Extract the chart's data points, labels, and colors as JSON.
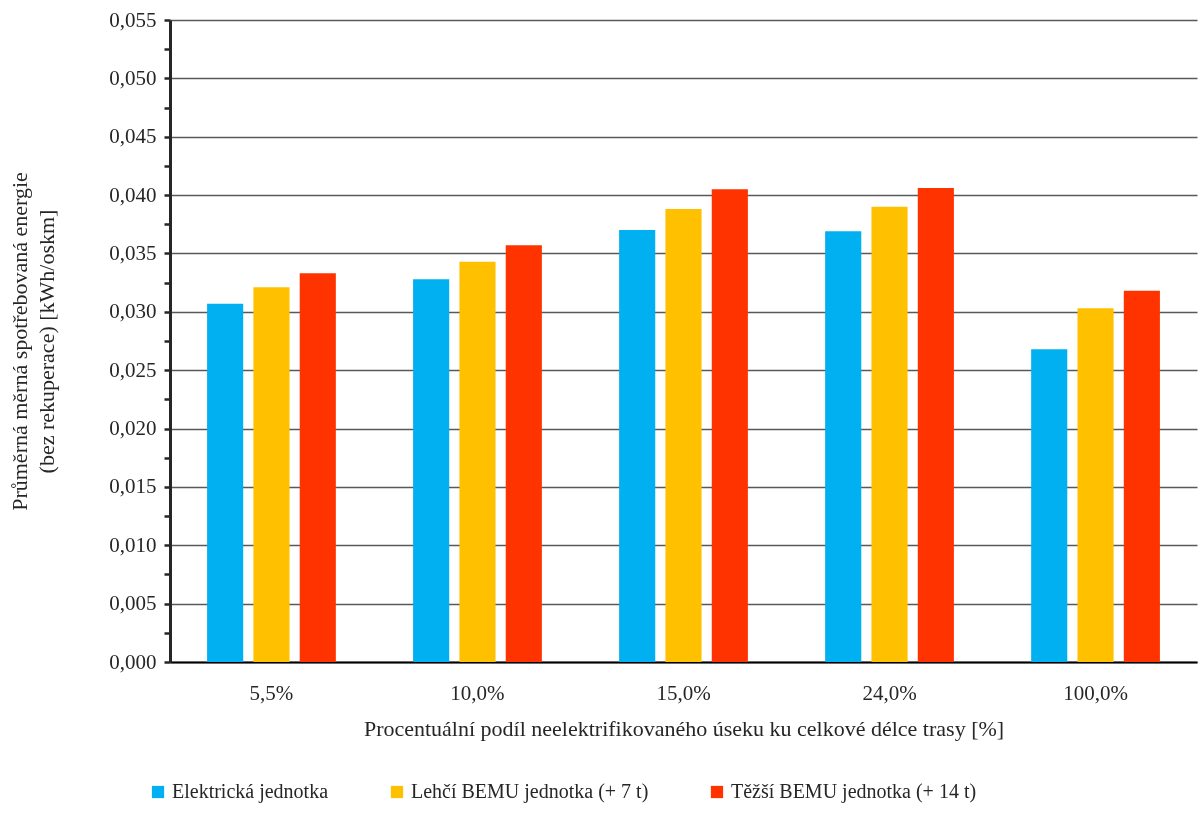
{
  "chart_data": {
    "type": "bar",
    "xlabel": "Procentuální podíl neelektrifikovaného úseku ku celkové délce trasy [%]",
    "ylabel": "Průměrná měrná spotřebovaná energie (bez rekuperace) [kWh/oskm]",
    "categories": [
      "5,5%",
      "10,0%",
      "15,0%",
      "24,0%",
      "100,0%"
    ],
    "series": [
      {
        "name": "Elektrická jednotka",
        "color": "#00b0f0",
        "values": [
          0.0307,
          0.0328,
          0.037,
          0.0369,
          0.0268
        ]
      },
      {
        "name": "Lehčí BEMU jednotka (+ 7 t)",
        "color": "#ffc000",
        "values": [
          0.0321,
          0.0343,
          0.0388,
          0.039,
          0.0303
        ]
      },
      {
        "name": "Těžší BEMU jednotka (+ 14 t)",
        "color": "#ff3300",
        "values": [
          0.0333,
          0.0357,
          0.0405,
          0.0406,
          0.0318
        ]
      }
    ],
    "ylim": [
      0,
      0.055
    ],
    "yticks": [
      {
        "value": 0,
        "label": "0,000"
      },
      {
        "value": 0.0025,
        "label": null
      },
      {
        "value": 0.005,
        "label": "0,005"
      },
      {
        "value": 0.0075,
        "label": null
      },
      {
        "value": 0.01,
        "label": "0,010"
      },
      {
        "value": 0.0125,
        "label": null
      },
      {
        "value": 0.015,
        "label": "0,015"
      },
      {
        "value": 0.0175,
        "label": null
      },
      {
        "value": 0.02,
        "label": "0,020"
      },
      {
        "value": 0.0225,
        "label": null
      },
      {
        "value": 0.025,
        "label": "0,025"
      },
      {
        "value": 0.0275,
        "label": null
      },
      {
        "value": 0.03,
        "label": "0,030"
      },
      {
        "value": 0.0325,
        "label": null
      },
      {
        "value": 0.035,
        "label": "0,035"
      },
      {
        "value": 0.0375,
        "label": null
      },
      {
        "value": 0.04,
        "label": "0,040"
      },
      {
        "value": 0.0425,
        "label": null
      },
      {
        "value": 0.045,
        "label": "0,045"
      },
      {
        "value": 0.0475,
        "label": null
      },
      {
        "value": 0.05,
        "label": "0,050"
      },
      {
        "value": 0.0525,
        "label": null
      },
      {
        "value": 0.055,
        "label": "0,055"
      }
    ],
    "grid": "y",
    "legend": "bottom"
  }
}
